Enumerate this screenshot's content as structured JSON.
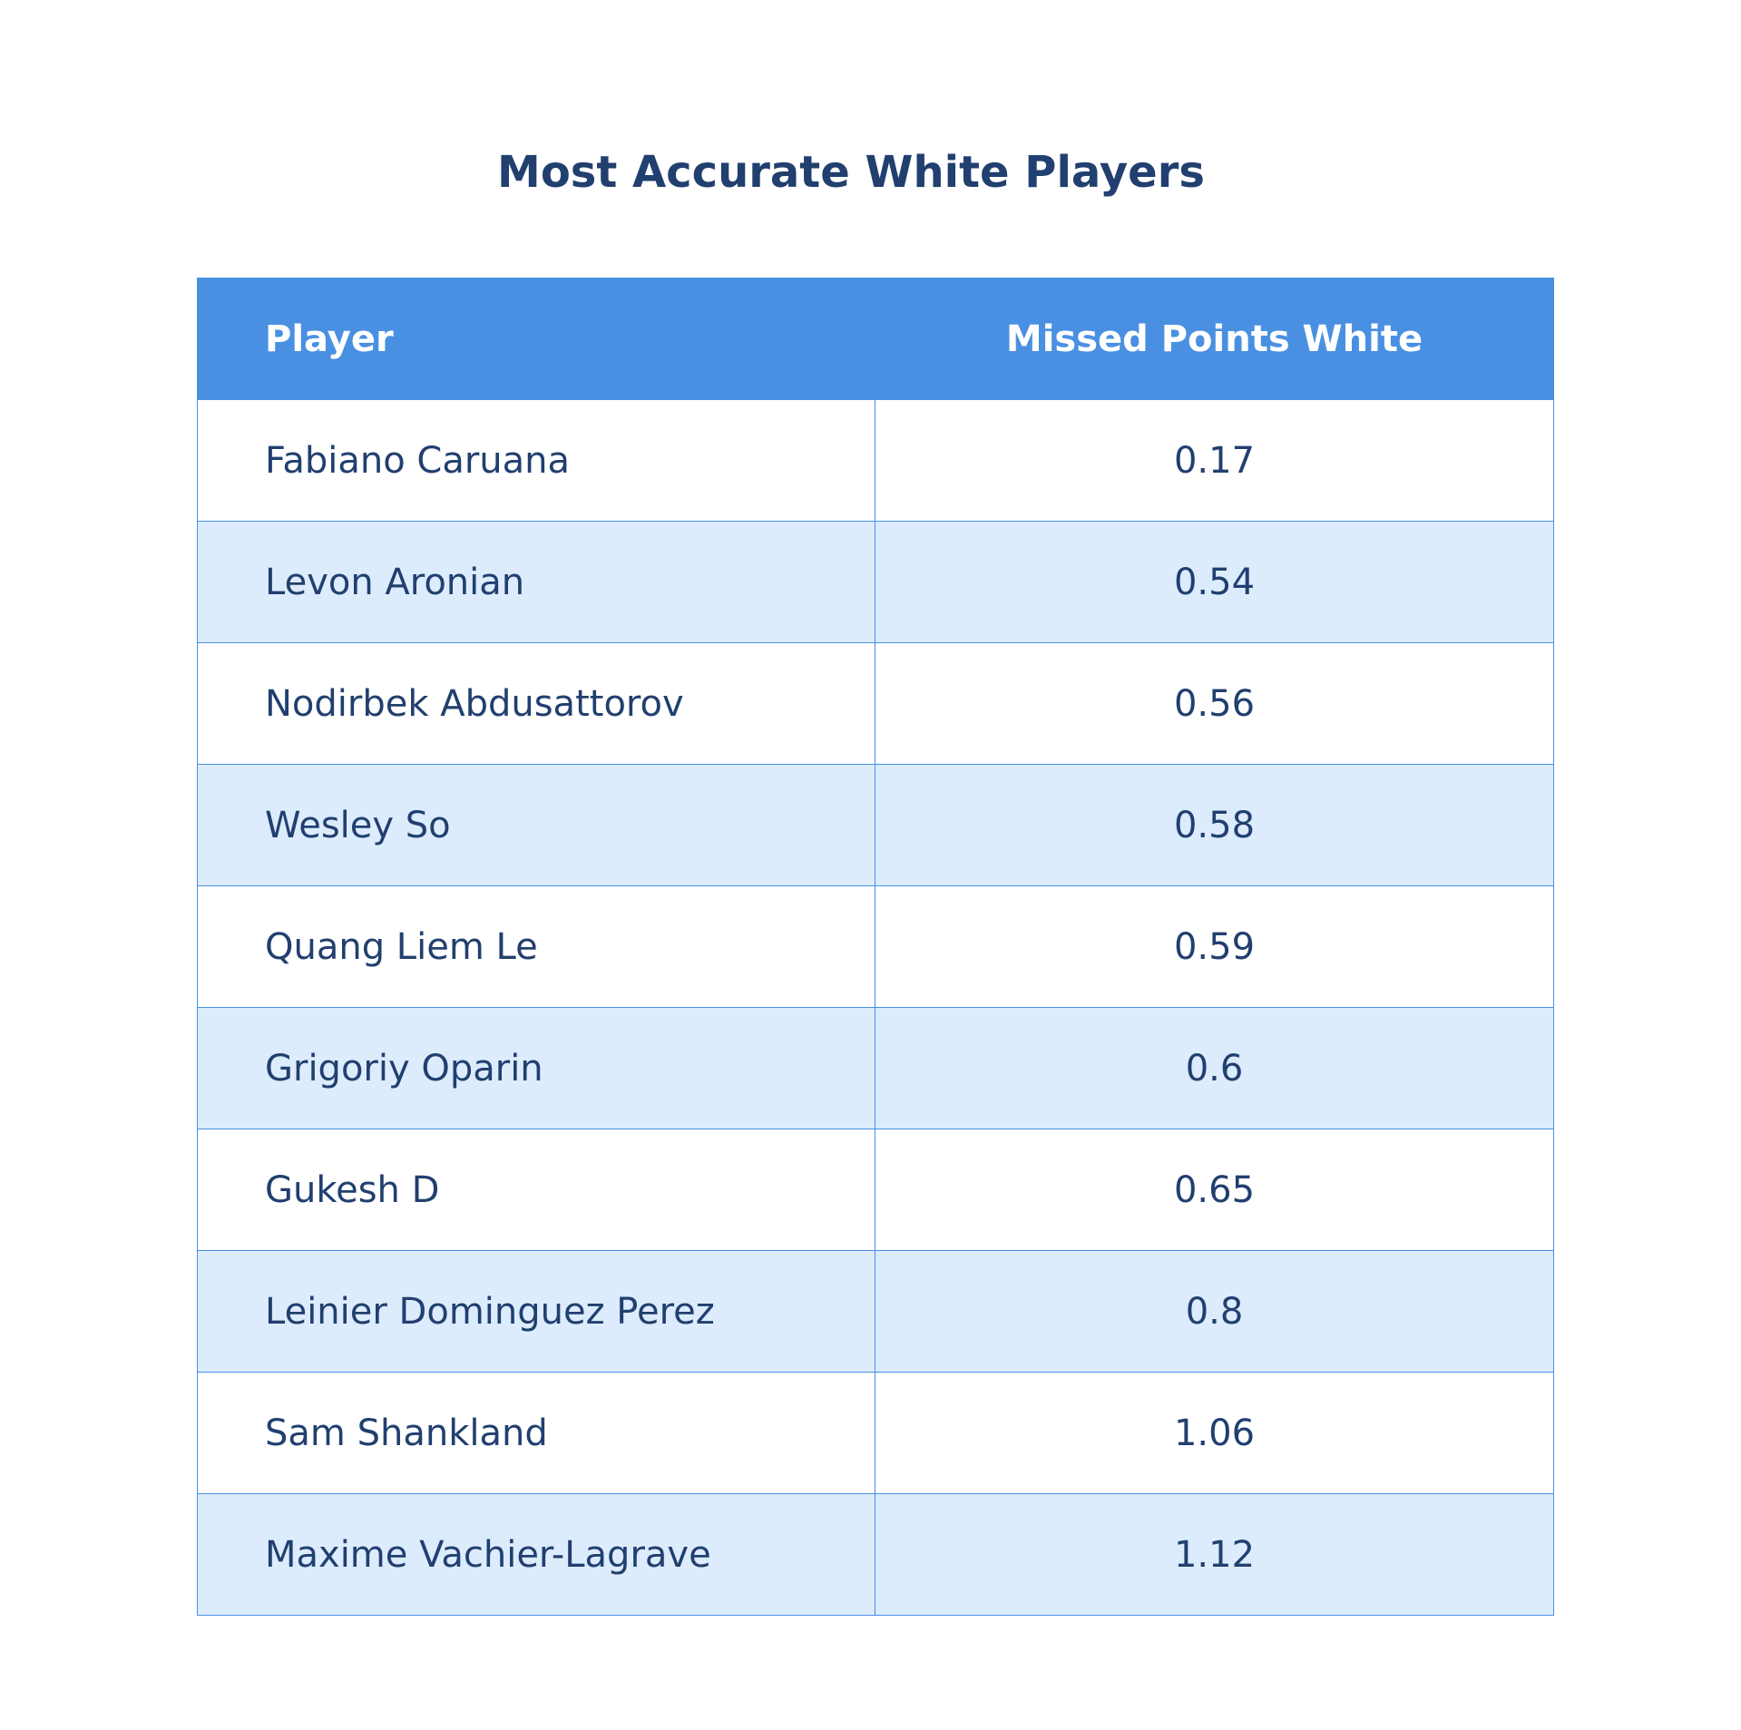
{
  "chart_data": {
    "type": "table",
    "title": "Most Accurate White Players",
    "columns": [
      "Player",
      "Missed Points White"
    ],
    "rows": [
      [
        "Fabiano Caruana",
        "0.17"
      ],
      [
        "Levon Aronian",
        "0.54"
      ],
      [
        "Nodirbek Abdusattorov",
        "0.56"
      ],
      [
        "Wesley So",
        "0.58"
      ],
      [
        "Quang Liem Le",
        "0.59"
      ],
      [
        "Grigoriy Oparin",
        "0.6"
      ],
      [
        "Gukesh D",
        "0.65"
      ],
      [
        "Leinier Dominguez Perez",
        "0.8"
      ],
      [
        "Sam Shankland",
        "1.06"
      ],
      [
        "Maxime Vachier-Lagrave",
        "1.12"
      ]
    ],
    "header_color": "#4a90e2",
    "stripe_color": "#dcecfc",
    "text_color": "#213f6f"
  }
}
